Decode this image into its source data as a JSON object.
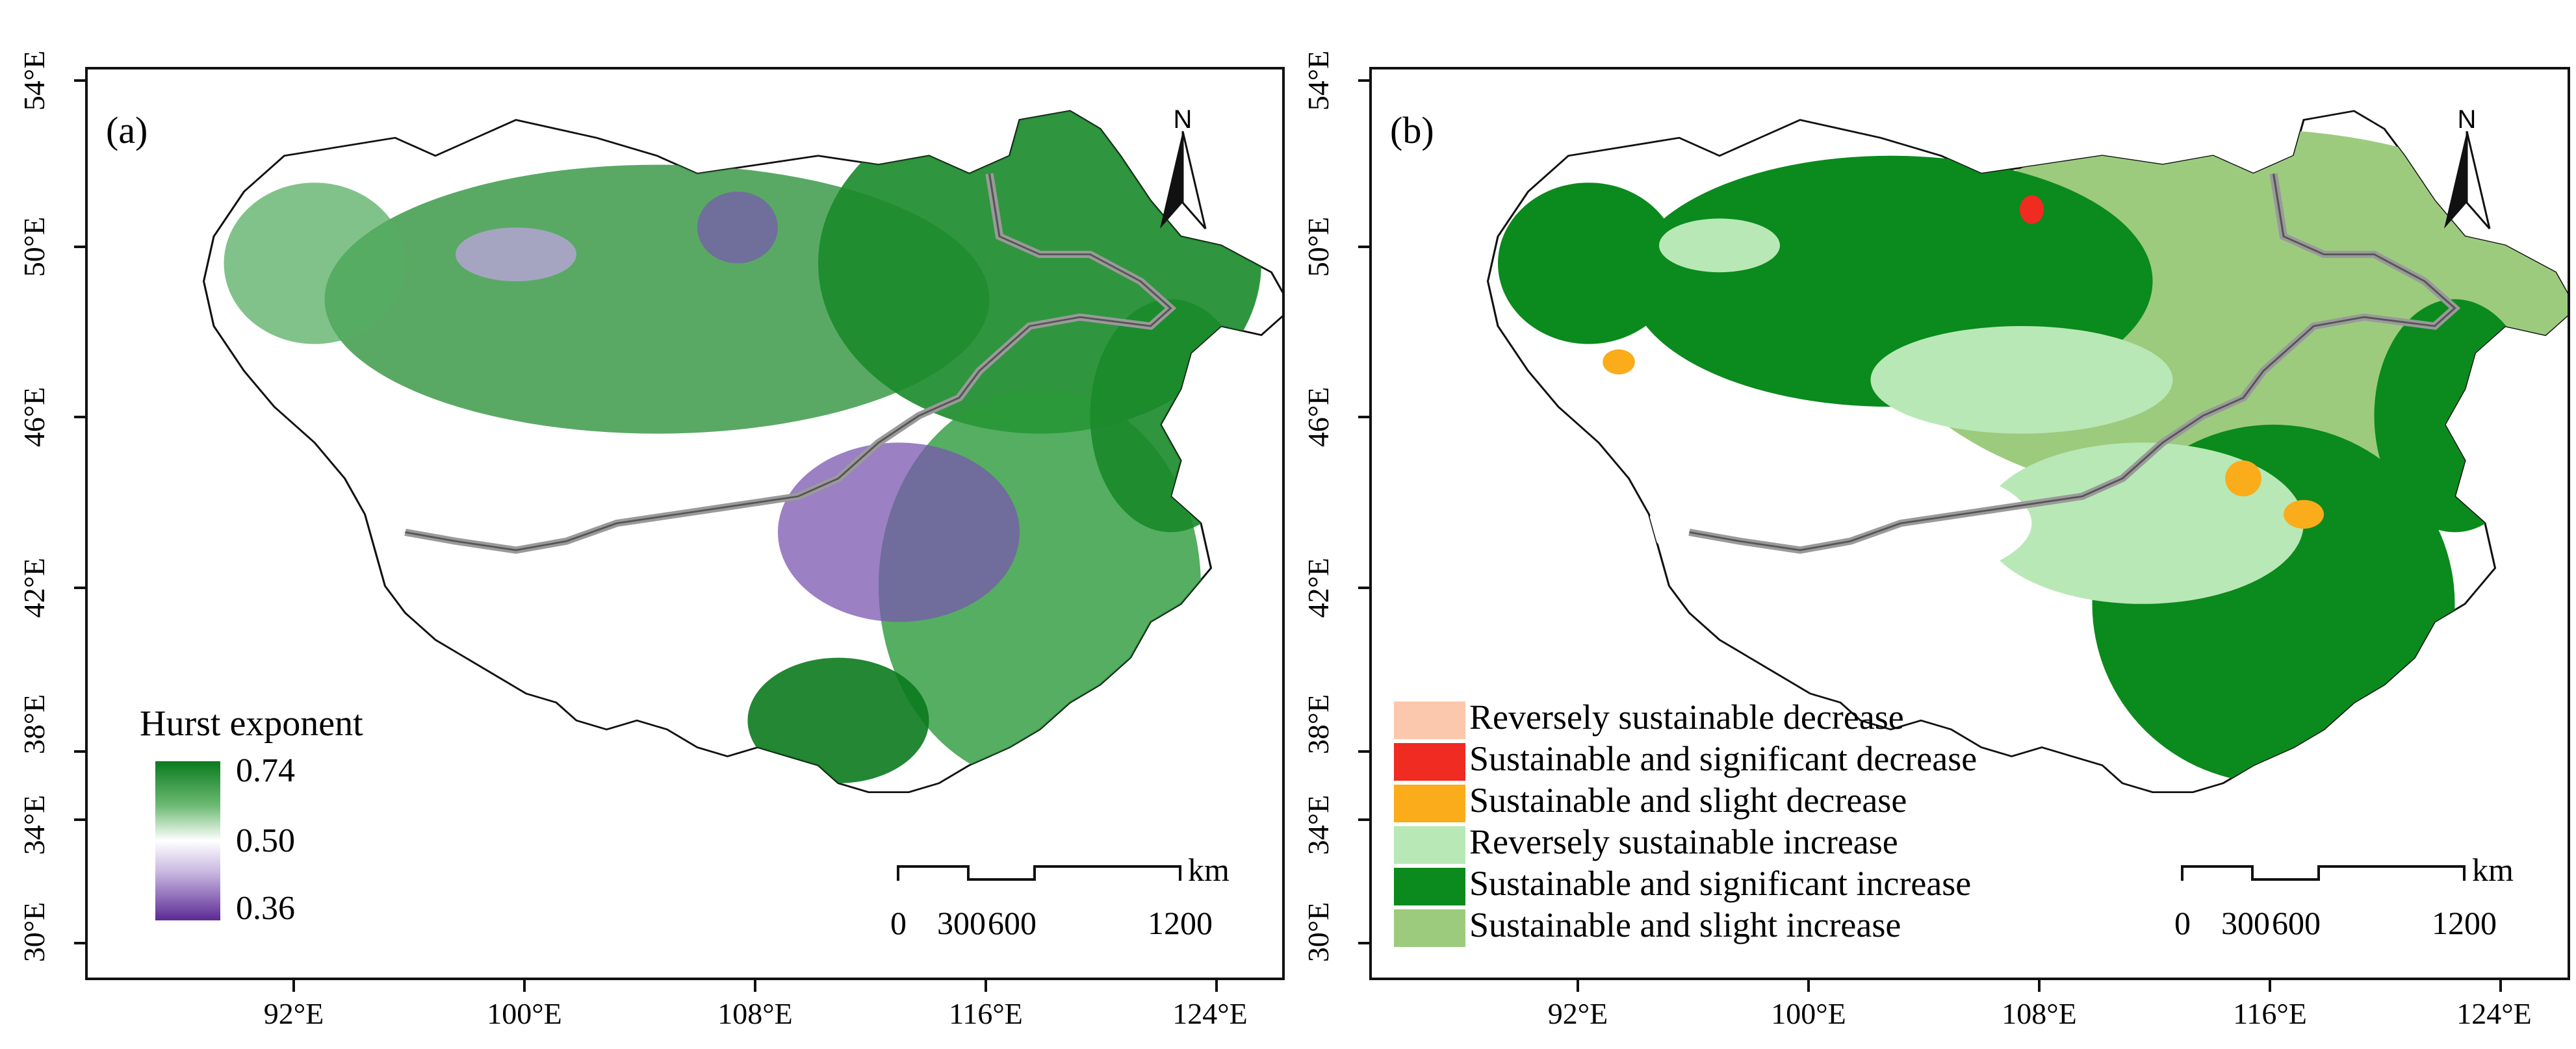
{
  "panels": [
    {
      "label": "(a)",
      "y_ticks": [
        "54°E",
        "50°E",
        "46°E",
        "42°E",
        "38°E",
        "34°E",
        "30°E"
      ],
      "x_ticks": [
        "92°E",
        "100°E",
        "108°E",
        "116°E",
        "124°E"
      ],
      "north_label": "N",
      "scale": {
        "labels": [
          "0",
          "300",
          "600",
          "1200"
        ],
        "unit": "km"
      },
      "legend": {
        "title": "Hurst exponent",
        "max": "0.74",
        "mid": "0.50",
        "min": "0.36",
        "colors": [
          "#0b7a1e",
          "#ffffff",
          "#5b2a94"
        ]
      }
    },
    {
      "label": "(b)",
      "y_ticks": [
        "54°E",
        "50°E",
        "46°E",
        "42°E",
        "38°E",
        "34°E",
        "30°E"
      ],
      "x_ticks": [
        "92°E",
        "100°E",
        "108°E",
        "116°E",
        "124°E"
      ],
      "north_label": "N",
      "scale": {
        "labels": [
          "0",
          "300",
          "600",
          "1200"
        ],
        "unit": "km"
      },
      "legend": [
        {
          "label": "Reversely sustainable decrease",
          "color": "#fbc8ad"
        },
        {
          "label": "Sustainable and significant decrease",
          "color": "#ef2b22"
        },
        {
          "label": "Sustainable and slight decrease",
          "color": "#fbac1a"
        },
        {
          "label": "Reversely sustainable increase",
          "color": "#b8e8b6"
        },
        {
          "label": "Sustainable and significant increase",
          "color": "#0b8a1d"
        },
        {
          "label": "Sustainable and slight increase",
          "color": "#9ccb7e"
        }
      ]
    }
  ]
}
